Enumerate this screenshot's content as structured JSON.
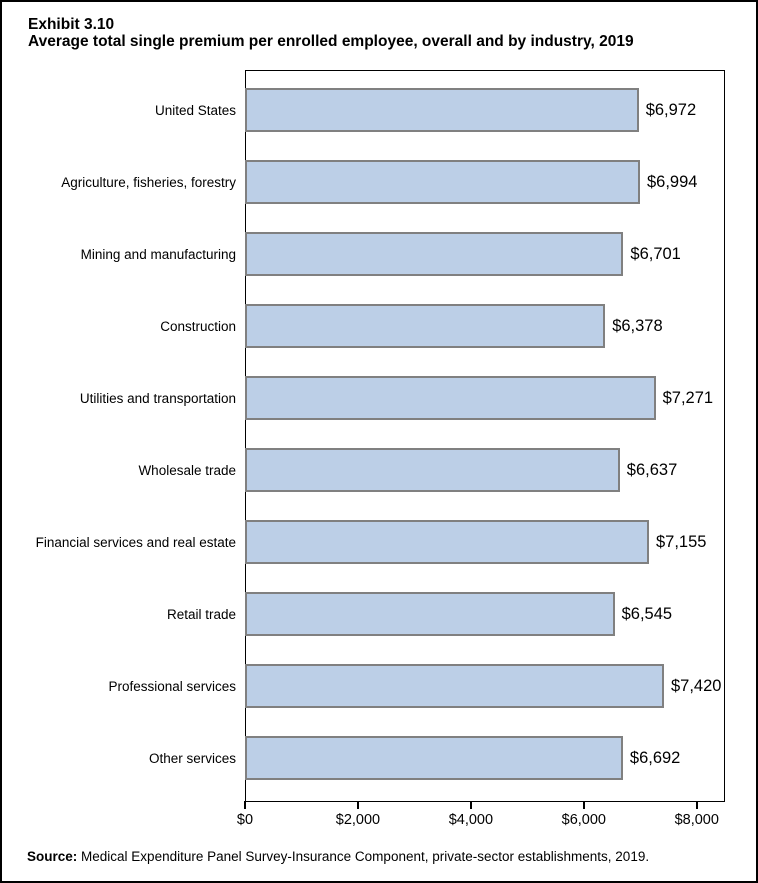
{
  "title": {
    "line1": "Exhibit 3.10",
    "line2": "Average total single premium per enrolled employee, overall and by industry, 2019"
  },
  "source": {
    "label": "Source:",
    "text": "Medical Expenditure Panel Survey-Insurance Component, private-sector establishments, 2019."
  },
  "chart_data": {
    "type": "bar",
    "orientation": "horizontal",
    "title": "Exhibit 3.10 — Average total single premium per enrolled employee, overall and by industry, 2019",
    "categories": [
      "United States",
      "Agriculture, fisheries, forestry",
      "Mining and manufacturing",
      "Construction",
      "Utilities and transportation",
      "Wholesale trade",
      "Financial services and real estate",
      "Retail trade",
      "Professional services",
      "Other services"
    ],
    "values": [
      6972,
      6994,
      6701,
      6378,
      7271,
      6637,
      7155,
      6545,
      7420,
      6692
    ],
    "value_labels": [
      "$6,972",
      "$6,994",
      "$6,701",
      "$6,378",
      "$7,271",
      "$6,637",
      "$7,155",
      "$6,545",
      "$7,420",
      "$6,692"
    ],
    "x_ticks": {
      "values": [
        0,
        2000,
        4000,
        6000,
        8000
      ],
      "labels": [
        "$0",
        "$2,000",
        "$4,000",
        "$6,000",
        "$8,000"
      ]
    },
    "xlim": [
      0,
      8500
    ],
    "grid": false,
    "legend": false,
    "bar_fill": "#BCCFE7",
    "bar_border": "#808080",
    "axis_color": "#000000"
  }
}
